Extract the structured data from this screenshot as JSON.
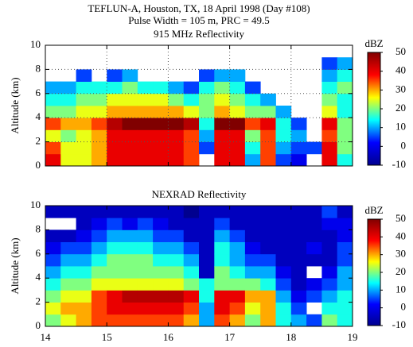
{
  "chart_data": [
    {
      "type": "heatmap",
      "title": "TEFLUN-A, Houston, TX, 18 April 1998 (Day #108)",
      "subtitle": "Pulse Width = 105 m, PRC = 49.5",
      "panel_title": "915 MHz Reflectivity",
      "ylabel": "Altitude (km)",
      "xlim": [
        14,
        19
      ],
      "xticks": [
        14,
        15,
        16,
        17,
        18,
        19
      ],
      "xtick_labels": false,
      "ylim": [
        0,
        10
      ],
      "yticks": [
        0,
        2,
        4,
        6,
        8,
        10
      ],
      "grid": true,
      "x": [
        14.125,
        14.375,
        14.625,
        14.875,
        15.125,
        15.375,
        15.625,
        15.875,
        16.125,
        16.375,
        16.625,
        16.875,
        17.125,
        17.375,
        17.625,
        17.875,
        18.125,
        18.375,
        18.625,
        18.875
      ],
      "y": [
        0.5,
        1.5,
        2.5,
        3.5,
        4.5,
        5.5,
        6.5,
        7.5,
        8.5,
        9.5
      ],
      "z": [
        [
          40,
          35,
          25,
          35,
          20,
          15,
          10,
          null,
          null,
          null
        ],
        [
          25,
          25,
          20,
          30,
          20,
          15,
          10,
          null,
          null,
          null
        ],
        [
          25,
          25,
          25,
          30,
          25,
          20,
          15,
          5,
          null,
          null
        ],
        [
          30,
          30,
          30,
          35,
          25,
          20,
          15,
          null,
          null,
          null
        ],
        [
          40,
          40,
          40,
          45,
          30,
          25,
          15,
          5,
          null,
          null
        ],
        [
          40,
          40,
          40,
          50,
          30,
          25,
          20,
          10,
          null,
          null
        ],
        [
          40,
          40,
          40,
          50,
          30,
          25,
          15,
          null,
          null,
          null
        ],
        [
          40,
          40,
          40,
          50,
          30,
          25,
          15,
          null,
          null,
          null
        ],
        [
          40,
          40,
          40,
          50,
          30,
          20,
          10,
          null,
          null,
          null
        ],
        [
          35,
          35,
          35,
          45,
          25,
          15,
          5,
          null,
          null,
          null
        ],
        [
          null,
          5,
          10,
          15,
          20,
          20,
          15,
          5,
          null,
          null
        ],
        [
          40,
          40,
          40,
          50,
          30,
          25,
          20,
          10,
          null,
          null
        ],
        [
          40,
          40,
          40,
          50,
          25,
          20,
          15,
          10,
          null,
          null
        ],
        [
          10,
          15,
          20,
          35,
          20,
          15,
          5,
          null,
          null,
          null
        ],
        [
          35,
          35,
          35,
          40,
          20,
          10,
          null,
          null,
          null,
          null
        ],
        [
          5,
          10,
          15,
          15,
          10,
          null,
          null,
          null,
          null,
          null
        ],
        [
          0,
          5,
          10,
          5,
          null,
          null,
          null,
          null,
          null,
          null
        ],
        [
          null,
          5,
          null,
          null,
          null,
          null,
          null,
          null,
          null,
          null
        ],
        [
          40,
          40,
          35,
          40,
          25,
          20,
          15,
          10,
          5,
          null
        ],
        [
          15,
          20,
          20,
          20,
          15,
          15,
          20,
          15,
          10,
          null
        ]
      ],
      "colorbar": {
        "label": "dBZ",
        "lim": [
          -10,
          50
        ],
        "ticks": [
          -10,
          0,
          10,
          20,
          30,
          40,
          50
        ],
        "colors": [
          "#00008f",
          "#0000ff",
          "#00ffff",
          "#ffff00",
          "#ff0000",
          "#800000"
        ]
      }
    },
    {
      "type": "heatmap",
      "panel_title": "NEXRAD Reflectivity",
      "ylabel": "Altitude (km)",
      "xlim": [
        14,
        19
      ],
      "xticks": [
        14,
        15,
        16,
        17,
        18,
        19
      ],
      "xtick_labels": true,
      "ylim": [
        0,
        10
      ],
      "yticks": [
        0,
        2,
        4,
        6,
        8,
        10
      ],
      "grid": false,
      "x": [
        14.125,
        14.375,
        14.625,
        14.875,
        15.125,
        15.375,
        15.625,
        15.875,
        16.125,
        16.375,
        16.625,
        16.875,
        17.125,
        17.375,
        17.625,
        17.875,
        18.125,
        18.375,
        18.625,
        18.875
      ],
      "y": [
        0.5,
        1.5,
        2.5,
        3.5,
        4.5,
        5.5,
        6.5,
        7.5,
        8.5,
        9.5
      ],
      "z": [
        [
          20,
          25,
          20,
          15,
          10,
          5,
          0,
          -5,
          null,
          -5
        ],
        [
          25,
          30,
          25,
          20,
          15,
          10,
          5,
          -5,
          null,
          -5
        ],
        [
          30,
          30,
          25,
          20,
          15,
          10,
          5,
          0,
          -5,
          -5
        ],
        [
          35,
          35,
          35,
          25,
          20,
          15,
          10,
          5,
          0,
          -5
        ],
        [
          35,
          40,
          40,
          25,
          20,
          20,
          15,
          10,
          5,
          -5
        ],
        [
          35,
          40,
          45,
          25,
          20,
          20,
          15,
          10,
          0,
          -5
        ],
        [
          35,
          40,
          45,
          25,
          20,
          20,
          15,
          10,
          5,
          -5
        ],
        [
          35,
          40,
          45,
          25,
          20,
          15,
          10,
          5,
          0,
          -5
        ],
        [
          35,
          40,
          45,
          25,
          20,
          15,
          10,
          5,
          -5,
          -5
        ],
        [
          30,
          35,
          40,
          20,
          15,
          10,
          5,
          -5,
          -5,
          -10
        ],
        [
          10,
          10,
          15,
          15,
          -5,
          -5,
          -5,
          -5,
          -5,
          -5
        ],
        [
          35,
          40,
          40,
          20,
          20,
          15,
          15,
          10,
          5,
          -5
        ],
        [
          30,
          35,
          40,
          20,
          15,
          10,
          10,
          5,
          -5,
          -5
        ],
        [
          20,
          25,
          30,
          20,
          10,
          5,
          0,
          -5,
          -5,
          -5
        ],
        [
          30,
          30,
          30,
          15,
          10,
          5,
          -5,
          -5,
          -5,
          -5
        ],
        [
          15,
          15,
          10,
          5,
          0,
          -5,
          -5,
          -5,
          -5,
          -5
        ],
        [
          10,
          5,
          0,
          -5,
          -5,
          -5,
          -5,
          -5,
          -5,
          -5
        ],
        [
          5,
          null,
          5,
          0,
          null,
          -5,
          0,
          -5,
          -5,
          -5
        ],
        [
          20,
          15,
          10,
          5,
          0,
          -5,
          -5,
          -5,
          0,
          5
        ],
        [
          15,
          15,
          15,
          10,
          10,
          5,
          5,
          0,
          0,
          -5
        ]
      ],
      "colorbar": {
        "label": "dBZ",
        "lim": [
          -10,
          50
        ],
        "ticks": [
          -10,
          0,
          10,
          20,
          30,
          40,
          50
        ],
        "colors": [
          "#00008f",
          "#0000ff",
          "#00ffff",
          "#ffff00",
          "#ff0000",
          "#800000"
        ]
      }
    }
  ]
}
